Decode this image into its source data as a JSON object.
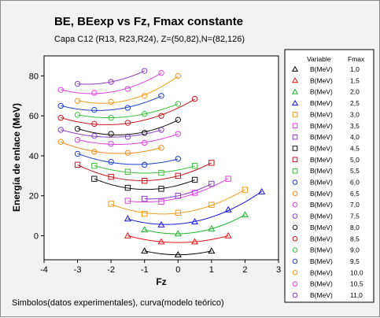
{
  "chart_data": {
    "type": "scatter",
    "title": "BE, BEexp vs Fz, Fmax constante",
    "subtitle": "Capa C12 (R13, R23,R24), Z=(50,82),N=(82,126)",
    "xlabel": "Fz",
    "ylabel": "Energía de enlace (MeV)",
    "footnote": "Simbolos(datos experimentales), curva(modelo teórico)",
    "xlim": [
      -4,
      3
    ],
    "ylim": [
      -12,
      90
    ],
    "x_ticks": [
      "-4",
      "-3",
      "-2",
      "-1",
      "0",
      "1",
      "2",
      "3"
    ],
    "y_ticks": [
      "0",
      "20",
      "40",
      "60",
      "80"
    ],
    "x_tick_values": [
      -4,
      -3,
      -2,
      -1,
      0,
      1,
      2,
      3
    ],
    "y_tick_values": [
      0,
      20,
      40,
      60,
      80
    ],
    "legend": {
      "position": "right",
      "header_variable": "Variable",
      "header_fmax": "Fmax"
    },
    "series": [
      {
        "variable": "B(MeV)",
        "fmax": "1,0",
        "color": "#000000",
        "marker": "triangle-open",
        "x": [
          -1,
          0,
          1
        ],
        "y": [
          -7.6,
          -9.5,
          -7.6
        ]
      },
      {
        "variable": "B(MeV)",
        "fmax": "1,5",
        "color": "#e8171b",
        "marker": "triangle-open",
        "x": [
          -1.5,
          -0.5,
          0.5,
          1.5
        ],
        "y": [
          0.0,
          -3.0,
          -3.0,
          0.0
        ]
      },
      {
        "variable": "B(MeV)",
        "fmax": "2,0",
        "color": "#19b52b",
        "marker": "triangle-open",
        "x": [
          -1,
          0,
          1,
          2
        ],
        "y": [
          3.0,
          1.0,
          3.5,
          10.5
        ]
      },
      {
        "variable": "B(MeV)",
        "fmax": "2,5",
        "color": "#1515e0",
        "marker": "triangle-open",
        "x": [
          -1.5,
          -0.5,
          0.5,
          1.5,
          2.5
        ],
        "y": [
          8.5,
          5.5,
          7.0,
          13.0,
          22.0
        ]
      },
      {
        "variable": "B(MeV)",
        "fmax": "3,0",
        "color": "#f29a1a",
        "marker": "square-open",
        "x": [
          -2,
          -1,
          0,
          1,
          2
        ],
        "y": [
          16.0,
          11.0,
          11.5,
          15.5,
          23.0
        ]
      },
      {
        "variable": "B(MeV)",
        "fmax": "3,5",
        "color": "#e040e0",
        "marker": "square-open",
        "x": [
          -1.5,
          -0.5,
          0.5,
          1.5
        ],
        "y": [
          17.5,
          17.0,
          21.5,
          28.5
        ]
      },
      {
        "variable": "B(MeV)",
        "fmax": "4,0",
        "color": "#8b3fc8",
        "marker": "square-open",
        "x": [
          -1,
          0,
          1
        ],
        "y": [
          18.5,
          20.0,
          26.0
        ]
      },
      {
        "variable": "B(MeV)",
        "fmax": "4,5",
        "color": "#111111",
        "marker": "square-open",
        "x": [
          -2.5,
          -1.5,
          -0.5,
          0.5
        ],
        "y": [
          28.5,
          24.0,
          23.5,
          28.0
        ]
      },
      {
        "variable": "B(MeV)",
        "fmax": "5,0",
        "color": "#c4161c",
        "marker": "square-open",
        "x": [
          -3,
          -2,
          -1,
          0,
          1
        ],
        "y": [
          35.5,
          29.5,
          27.5,
          30.0,
          36.5
        ]
      },
      {
        "variable": "B(MeV)",
        "fmax": "5,5",
        "color": "#3bbf3b",
        "marker": "square-open",
        "x": [
          -2.5,
          -1.5,
          -0.5,
          0.5
        ],
        "y": [
          35.0,
          32.0,
          31.5,
          35.0
        ]
      },
      {
        "variable": "B(MeV)",
        "fmax": "6,0",
        "color": "#1f3fcf",
        "marker": "circle-open",
        "x": [
          -3,
          -2,
          -1,
          0
        ],
        "y": [
          41.0,
          37.0,
          35.5,
          38.5
        ]
      },
      {
        "variable": "B(MeV)",
        "fmax": "6,5",
        "color": "#f28c1a",
        "marker": "circle-open",
        "x": [
          -3.5,
          -2.5,
          -1.5,
          -0.5
        ],
        "y": [
          47.0,
          42.0,
          41.5,
          44.0
        ]
      },
      {
        "variable": "B(MeV)",
        "fmax": "7,0",
        "color": "#e040e0",
        "marker": "circle-open",
        "x": [
          -3,
          -2,
          -1,
          0
        ],
        "y": [
          48.0,
          46.0,
          46.5,
          51.0
        ]
      },
      {
        "variable": "B(MeV)",
        "fmax": "7,5",
        "color": "#8b3fc8",
        "marker": "circle-open",
        "x": [
          -3.5,
          -2.5,
          -1.5,
          -0.5
        ],
        "y": [
          53.0,
          50.0,
          49.5,
          53.0
        ]
      },
      {
        "variable": "B(MeV)",
        "fmax": "8,0",
        "color": "#111111",
        "marker": "circle-open",
        "x": [
          -3,
          -2,
          -1,
          0
        ],
        "y": [
          53.5,
          51.0,
          51.5,
          58.0
        ]
      },
      {
        "variable": "B(MeV)",
        "fmax": "8,5",
        "color": "#c4161c",
        "marker": "circle-open",
        "x": [
          -3.5,
          -2.5,
          -1.5,
          -0.5,
          0.5
        ],
        "y": [
          59.0,
          56.0,
          56.5,
          60.0,
          68.5
        ]
      },
      {
        "variable": "B(MeV)",
        "fmax": "9,0",
        "color": "#3bbf3b",
        "marker": "circle-open",
        "x": [
          -3,
          -2,
          -1,
          0
        ],
        "y": [
          60.5,
          59.0,
          61.0,
          66.0
        ]
      },
      {
        "variable": "B(MeV)",
        "fmax": "9,5",
        "color": "#1f3fcf",
        "marker": "circle-open",
        "x": [
          -3.5,
          -2.5,
          -1.5,
          -0.5
        ],
        "y": [
          65.0,
          63.0,
          64.0,
          70.0
        ]
      },
      {
        "variable": "B(MeV)",
        "fmax": "10,0",
        "color": "#f29a1a",
        "marker": "circle-open",
        "x": [
          -3,
          -2,
          -1,
          0
        ],
        "y": [
          67.5,
          67.0,
          70.0,
          80.0
        ]
      },
      {
        "variable": "B(MeV)",
        "fmax": "10,5",
        "color": "#e040e0",
        "marker": "circle-open",
        "x": [
          -3.5,
          -2.5,
          -1.5,
          -0.5
        ],
        "y": [
          73.0,
          71.5,
          73.5,
          81.5
        ]
      },
      {
        "variable": "B(MeV)",
        "fmax": "11,0",
        "color": "#8b3fc8",
        "marker": "circle-open",
        "x": [
          -3,
          -2,
          -1
        ],
        "y": [
          76.0,
          77.0,
          82.5
        ]
      }
    ]
  }
}
